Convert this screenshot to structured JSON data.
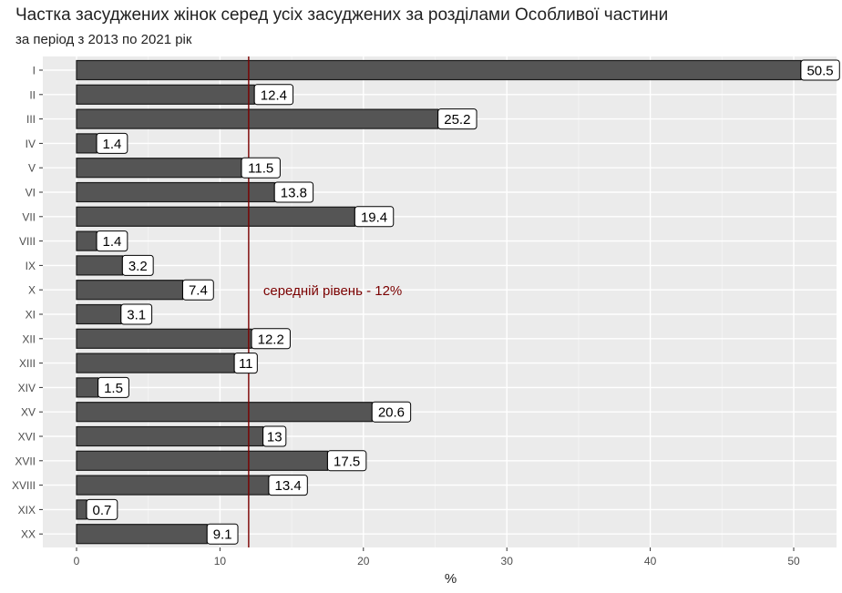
{
  "chart_data": {
    "type": "bar",
    "orientation": "horizontal",
    "title": "Частка засуджених жінок серед усіх засуджених за розділами Особливої частини",
    "subtitle": "за період з 2013 по 2021 рік",
    "xlabel": "%",
    "ylabel": "",
    "xlim": [
      0,
      53
    ],
    "xticks": [
      0,
      10,
      20,
      30,
      40,
      50
    ],
    "categories": [
      "I",
      "II",
      "III",
      "IV",
      "V",
      "VI",
      "VII",
      "VIII",
      "IX",
      "X",
      "XI",
      "XII",
      "XIII",
      "XIV",
      "XV",
      "XVI",
      "XVII",
      "XVIII",
      "XIX",
      "XX"
    ],
    "value_labels": [
      "50.5",
      "12.4",
      "25.2",
      "1.4",
      "11.5",
      "13.8",
      "19.4",
      "1.4",
      "3.2",
      "7.4",
      "3.1",
      "12.2",
      "11",
      "1.5",
      "20.6",
      "13",
      "17.5",
      "13.4",
      "0.7",
      "9.1"
    ],
    "values": [
      50.5,
      12.4,
      25.2,
      1.4,
      11.5,
      13.8,
      19.4,
      1.4,
      3.2,
      7.4,
      3.1,
      12.2,
      11,
      1.5,
      20.6,
      13,
      17.5,
      13.4,
      0.7,
      9.1
    ],
    "reference_line": {
      "value": 12,
      "label": "середній рівень - 12%",
      "color": "#7a0000"
    },
    "bar_color": "#555555",
    "panel_background": "#ebebeb",
    "grid": true,
    "legend": "none"
  }
}
